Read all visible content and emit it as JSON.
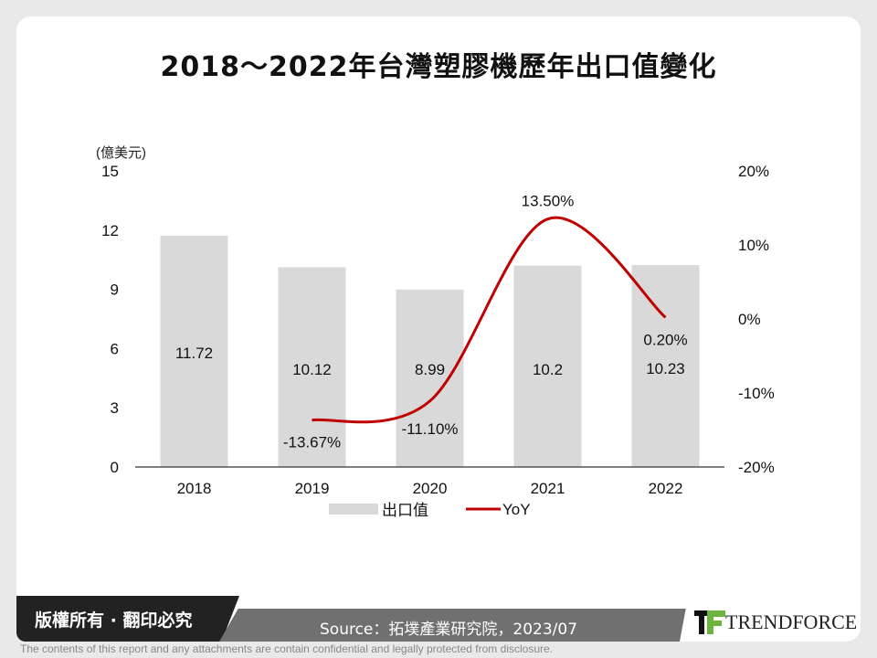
{
  "title": "2018～2022年台灣塑膠機歷年出口值變化",
  "chart_data": {
    "type": "bar+line",
    "categories": [
      "2018",
      "2019",
      "2020",
      "2021",
      "2022"
    ],
    "ylabel": "(億美元)",
    "ylim": [
      0,
      15
    ],
    "yticks": [
      "0",
      "3",
      "6",
      "9",
      "12",
      "15"
    ],
    "y2lim": [
      -20,
      20
    ],
    "y2ticks": [
      "-20%",
      "-10%",
      "0%",
      "10%",
      "20%"
    ],
    "series": [
      {
        "name": "出口值",
        "type": "bar",
        "color": "#d9d9d9",
        "values": [
          11.72,
          10.12,
          8.99,
          10.2,
          10.23
        ],
        "labels": [
          "11.72",
          "10.12",
          "8.99",
          "10.2",
          "10.23"
        ]
      },
      {
        "name": "YoY",
        "type": "line",
        "axis": "right",
        "color": "#c00000",
        "values": [
          null,
          -13.67,
          -11.1,
          13.5,
          0.2
        ],
        "labels": [
          "",
          "-13.67%",
          "-11.10%",
          "13.50%",
          "0.20%"
        ]
      }
    ],
    "legend": "bottom"
  },
  "footer": {
    "copyright": "版權所有 · 翻印必究",
    "source": "Source：拓墣產業研究院，2023/07",
    "brand": "TRENDFORCE",
    "disclaimer": "The contents of this report and any attachments are contain confidential and legally protected from disclosure."
  }
}
